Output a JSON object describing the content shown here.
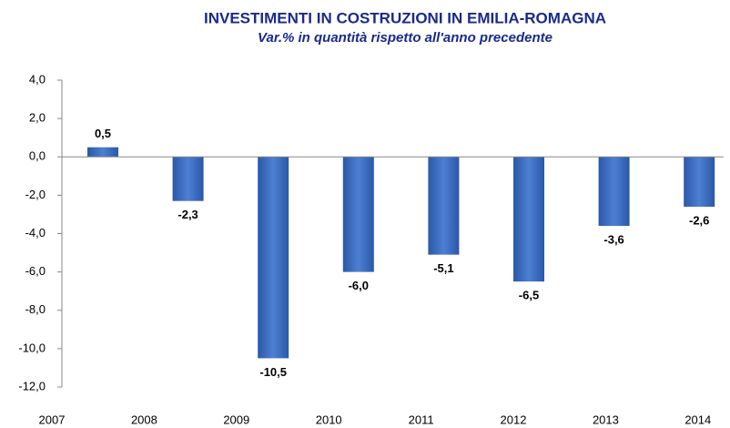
{
  "chart_data": {
    "type": "bar",
    "title": "INVESTIMENTI IN COSTRUZIONI IN EMILIA-ROMAGNA",
    "subtitle": "Var.% in quantità rispetto all'anno precedente",
    "categories": [
      "2007",
      "2008",
      "2009",
      "2010",
      "2011",
      "2012",
      "2013",
      "2014"
    ],
    "values": [
      0.5,
      -2.3,
      -10.5,
      -6.0,
      -5.1,
      -6.5,
      -3.6,
      -2.6
    ],
    "value_labels": [
      "0,5",
      "-2,3",
      "-10,5",
      "-6,0",
      "-5,1",
      "-6,5",
      "-3,6",
      "-2,6"
    ],
    "color": "#3a6cc4",
    "ylim": [
      -12,
      4
    ],
    "yticks": [
      {
        "value": 4,
        "label": "4,0"
      },
      {
        "value": 2,
        "label": "2,0"
      },
      {
        "value": 0,
        "label": "0,0"
      },
      {
        "value": -2,
        "label": "-2,0"
      },
      {
        "value": -4,
        "label": "-4,0"
      },
      {
        "value": -6,
        "label": "-6,0"
      },
      {
        "value": -8,
        "label": "-8,0"
      },
      {
        "value": -10,
        "label": "-10,0"
      },
      {
        "value": -12,
        "label": "-12,0"
      }
    ],
    "grid": false
  }
}
